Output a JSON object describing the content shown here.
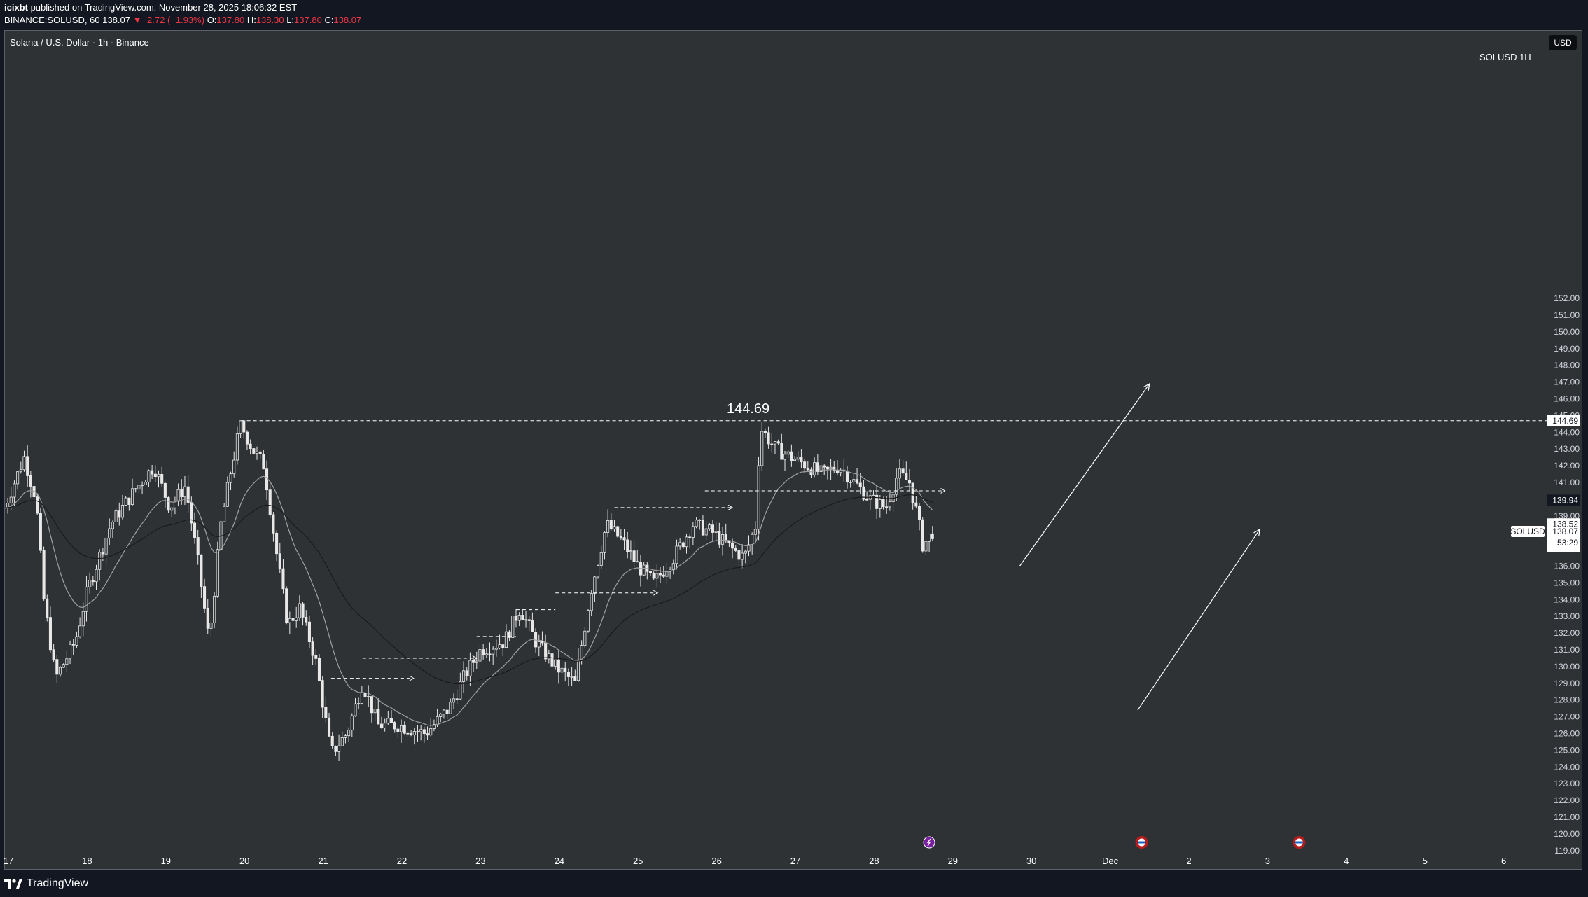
{
  "header": {
    "author": "icixbt",
    "published": " published on TradingView.com, November 28, 2025 18:06:32 EST",
    "ticker": "BINANCE:SOLUSD, 60",
    "last": "138.07",
    "change": "−2.72 (−1.93%)",
    "o_label": "O:",
    "o_val": "137.80",
    "h_label": "H:",
    "h_val": "138.30",
    "l_label": "L:",
    "l_val": "137.80",
    "c_label": "C:",
    "c_val": "138.07"
  },
  "chart": {
    "symbol_title": "Solana / U.S. Dollar · 1h · Binance",
    "currency_button": "USD",
    "symbol_tag": "SOLUSD  1H",
    "high_annotation": "144.69"
  },
  "footer": {
    "brand": "TradingView"
  },
  "colors": {
    "background": "#2f3235",
    "candle": "#e8e8e8",
    "down": "#f23645",
    "panel": "#131722",
    "ema_fast": "#a0a0a0",
    "ema_slow": "#1a1a1a"
  },
  "chart_data": {
    "type": "line",
    "title": "Solana / U.S. Dollar · 1h · Binance",
    "xlabel": "",
    "ylabel": "",
    "ylim": [
      119,
      152
    ],
    "grid": false,
    "y_ticks": [
      "119.00",
      "120.00",
      "121.00",
      "122.00",
      "123.00",
      "124.00",
      "125.00",
      "126.00",
      "127.00",
      "128.00",
      "129.00",
      "130.00",
      "131.00",
      "132.00",
      "133.00",
      "134.00",
      "135.00",
      "136.00",
      "137.00",
      "138.00",
      "139.00",
      "140.00",
      "141.00",
      "142.00",
      "143.00",
      "144.00",
      "145.00",
      "146.00",
      "147.00",
      "148.00",
      "149.00",
      "150.00",
      "151.00",
      "152.00"
    ],
    "x_ticks": [
      {
        "label": "17",
        "day": 17
      },
      {
        "label": "18",
        "day": 18
      },
      {
        "label": "19",
        "day": 19
      },
      {
        "label": "20",
        "day": 20
      },
      {
        "label": "21",
        "day": 21
      },
      {
        "label": "22",
        "day": 22
      },
      {
        "label": "23",
        "day": 23
      },
      {
        "label": "24",
        "day": 24
      },
      {
        "label": "25",
        "day": 25
      },
      {
        "label": "26",
        "day": 26
      },
      {
        "label": "27",
        "day": 27
      },
      {
        "label": "28",
        "day": 28
      },
      {
        "label": "29",
        "day": 29
      },
      {
        "label": "30",
        "day": 30
      },
      {
        "label": "Dec",
        "day": 31
      },
      {
        "label": "2",
        "day": 32
      },
      {
        "label": "3",
        "day": 33
      },
      {
        "label": "4",
        "day": 34
      },
      {
        "label": "5",
        "day": 35
      },
      {
        "label": "6",
        "day": 36
      }
    ],
    "price_key_points": [
      [
        16.95,
        139.5
      ],
      [
        17.2,
        142.5
      ],
      [
        17.35,
        140.0
      ],
      [
        17.45,
        134.0
      ],
      [
        17.6,
        129.3
      ],
      [
        17.85,
        131.5
      ],
      [
        18.0,
        134.5
      ],
      [
        18.3,
        138.5
      ],
      [
        18.6,
        140.5
      ],
      [
        18.85,
        142.0
      ],
      [
        19.05,
        139.5
      ],
      [
        19.25,
        140.8
      ],
      [
        19.4,
        136.5
      ],
      [
        19.55,
        131.5
      ],
      [
        19.7,
        138.5
      ],
      [
        19.82,
        141.5
      ],
      [
        19.95,
        144.5
      ],
      [
        20.1,
        143.0
      ],
      [
        20.25,
        142.0
      ],
      [
        20.4,
        137.0
      ],
      [
        20.55,
        132.5
      ],
      [
        20.7,
        133.5
      ],
      [
        20.9,
        130.5
      ],
      [
        21.1,
        124.8
      ],
      [
        21.3,
        126.0
      ],
      [
        21.5,
        129.0
      ],
      [
        21.7,
        126.5
      ],
      [
        21.95,
        126.5
      ],
      [
        22.3,
        126.0
      ],
      [
        22.6,
        127.5
      ],
      [
        22.8,
        129.5
      ],
      [
        23.0,
        131.0
      ],
      [
        23.3,
        131.5
      ],
      [
        23.5,
        133.5
      ],
      [
        23.7,
        131.5
      ],
      [
        23.95,
        130.0
      ],
      [
        24.2,
        129.0
      ],
      [
        24.4,
        134.5
      ],
      [
        24.6,
        138.5
      ],
      [
        24.8,
        137.5
      ],
      [
        25.0,
        136.0
      ],
      [
        25.2,
        135.0
      ],
      [
        25.45,
        136.5
      ],
      [
        25.7,
        138.5
      ],
      [
        25.95,
        138.0
      ],
      [
        26.2,
        137.0
      ],
      [
        26.35,
        136.5
      ],
      [
        26.5,
        138.5
      ],
      [
        26.55,
        144.3
      ],
      [
        26.75,
        143.0
      ],
      [
        26.95,
        142.5
      ],
      [
        27.15,
        142.0
      ],
      [
        27.35,
        141.5
      ],
      [
        27.55,
        142.0
      ],
      [
        27.75,
        141.0
      ],
      [
        27.95,
        140.0
      ],
      [
        28.15,
        139.5
      ],
      [
        28.3,
        141.5
      ],
      [
        28.45,
        141.0
      ],
      [
        28.55,
        139.0
      ],
      [
        28.62,
        137.2
      ],
      [
        28.75,
        138.1
      ]
    ],
    "candle_range": {
      "high": 144.69,
      "low": 121.7
    },
    "last_price": 138.07,
    "labels": [
      {
        "text": "144.69",
        "value": 144.69,
        "kind": "price-scale"
      },
      {
        "text": "139.94",
        "value": 139.94,
        "kind": "price-scale"
      },
      {
        "text": "138.52",
        "value": 138.52,
        "kind": "price-scale"
      },
      {
        "text": "138.07",
        "value": 138.07,
        "kind": "price-scale"
      },
      {
        "text": "53:29",
        "value": null,
        "kind": "countdown"
      },
      {
        "text": "SOLUSD",
        "value": 138.07,
        "kind": "legend"
      }
    ],
    "horizontal_levels": [
      {
        "value": 144.69,
        "from_day": 19.95,
        "to_day": 37.2,
        "arrow": false
      },
      {
        "value": 140.5,
        "from_day": 25.85,
        "to_day": 28.9,
        "arrow": true
      },
      {
        "value": 139.5,
        "from_day": 24.7,
        "to_day": 26.2,
        "arrow": true
      },
      {
        "value": 134.4,
        "from_day": 23.95,
        "to_day": 25.25,
        "arrow": true
      },
      {
        "value": 133.4,
        "from_day": 23.45,
        "to_day": 23.95,
        "arrow": false
      },
      {
        "value": 131.8,
        "from_day": 22.95,
        "to_day": 23.45,
        "arrow": false
      },
      {
        "value": 130.5,
        "from_day": 21.5,
        "to_day": 22.95,
        "arrow": true
      },
      {
        "value": 129.3,
        "from_day": 21.1,
        "to_day": 22.15,
        "arrow": true
      }
    ],
    "projection_arrows": [
      {
        "from": [
          29.85,
          136.0
        ],
        "to": [
          31.5,
          146.9
        ]
      },
      {
        "from": [
          31.35,
          127.4
        ],
        "to": [
          32.9,
          138.2
        ]
      }
    ],
    "event_markers": [
      {
        "day": 28.7,
        "kind": "dividend-event"
      },
      {
        "day": 31.4,
        "kind": "us-economic-event"
      },
      {
        "day": 33.4,
        "kind": "us-economic-event"
      }
    ]
  }
}
